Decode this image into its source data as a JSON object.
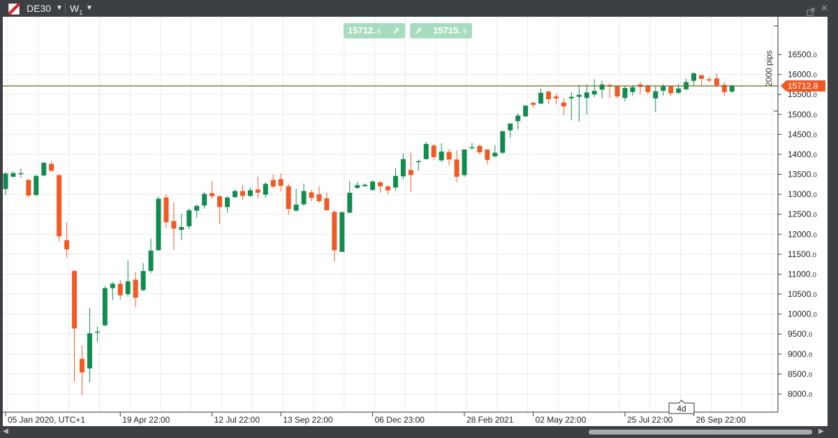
{
  "window": {
    "symbol": "DE30",
    "timeframe": "W",
    "timeframe_sub": "1"
  },
  "trade": {
    "sell_price": "15712.",
    "sell_price_small": "8",
    "buy_price": "15715.",
    "buy_price_small": "9"
  },
  "price_axis": {
    "current_price": "15712.8",
    "ruler_label": "2000 pips"
  },
  "time_axis": {
    "interval_badge": "4d"
  },
  "colors": {
    "bull": "#118c4f",
    "bear": "#f15a24",
    "price_line": "#6b6b1a",
    "grid": "#e9e9e9",
    "trade_button": "#a8dcbf"
  },
  "chart_data": {
    "type": "candlestick",
    "symbol": "DE30",
    "timeframe": "W1",
    "ylim": [
      7700,
      16900
    ],
    "y_ticks": [
      "8000.0",
      "8500.0",
      "9000.0",
      "9500.0",
      "10000.0",
      "10500.0",
      "11000.0",
      "11500.0",
      "12000.0",
      "12500.0",
      "13000.0",
      "13500.0",
      "14000.0",
      "14500.0",
      "15000.0",
      "15500.0",
      "16000.0",
      "16500.0"
    ],
    "x_labels": [
      "05 Jan 2020, UTC+1",
      "19 Apr 22:00",
      "12 Jul 22:00",
      "13 Sep 22:00",
      "06 Dec 23:00",
      "28 Feb 2021",
      "02 May 22:00",
      "25 Jul 22:00",
      "26 Sep 22:00"
    ],
    "x_label_weeks": [
      0,
      15,
      27,
      36,
      48,
      60,
      69,
      81,
      90
    ],
    "last_price": 15712.8,
    "candles": [
      [
        13130,
        13520,
        13560,
        12980
      ],
      [
        13440,
        13530,
        13580,
        13420
      ],
      [
        13520,
        13530,
        13640,
        13420
      ],
      [
        13360,
        12970,
        13380,
        12920
      ],
      [
        12980,
        13460,
        13490,
        12960
      ],
      [
        13470,
        13790,
        13800,
        13450
      ],
      [
        13760,
        13590,
        13840,
        13560
      ],
      [
        13480,
        11950,
        13490,
        11820
      ],
      [
        11850,
        11620,
        12300,
        11420
      ],
      [
        11080,
        9640,
        11100,
        8300
      ],
      [
        8880,
        8540,
        9220,
        7970
      ],
      [
        8640,
        9520,
        10150,
        8290
      ],
      [
        9540,
        9560,
        9690,
        9310
      ],
      [
        9720,
        10650,
        10700,
        9690
      ],
      [
        10650,
        10760,
        10800,
        10350
      ],
      [
        10760,
        10470,
        10850,
        10350
      ],
      [
        10500,
        10820,
        11340,
        10440
      ],
      [
        10860,
        10410,
        11060,
        10170
      ],
      [
        10600,
        11080,
        11280,
        10570
      ],
      [
        11080,
        11590,
        11890,
        11030
      ],
      [
        11600,
        12890,
        12940,
        11590
      ],
      [
        12920,
        12300,
        13000,
        12160
      ],
      [
        12330,
        12140,
        12800,
        11610
      ],
      [
        12110,
        12180,
        12510,
        11850
      ],
      [
        12200,
        12600,
        12650,
        12130
      ],
      [
        12590,
        12710,
        12740,
        12410
      ],
      [
        12720,
        13010,
        13060,
        12640
      ],
      [
        13030,
        12950,
        13340,
        12880
      ],
      [
        12950,
        12680,
        12980,
        12250
      ],
      [
        12680,
        12920,
        12950,
        12540
      ],
      [
        12930,
        13080,
        13120,
        12900
      ],
      [
        13080,
        12960,
        13240,
        12860
      ],
      [
        12960,
        13100,
        13170,
        12920
      ],
      [
        13120,
        13040,
        13450,
        12890
      ],
      [
        12990,
        13260,
        13300,
        12910
      ],
      [
        13360,
        13190,
        13500,
        13160
      ],
      [
        13380,
        13210,
        13520,
        13070
      ],
      [
        13200,
        12630,
        13270,
        12490
      ],
      [
        12590,
        12740,
        13140,
        12570
      ],
      [
        12750,
        13080,
        13270,
        12700
      ],
      [
        13050,
        12910,
        13110,
        12830
      ],
      [
        13000,
        12830,
        13200,
        12780
      ],
      [
        12900,
        12600,
        13050,
        12710
      ],
      [
        12560,
        11600,
        12600,
        11310
      ],
      [
        11560,
        12550,
        12580,
        11550
      ],
      [
        12540,
        13040,
        13340,
        12530
      ],
      [
        13160,
        13230,
        13310,
        13130
      ],
      [
        13200,
        13240,
        13270,
        13210
      ],
      [
        13110,
        13320,
        13350,
        13090
      ],
      [
        13300,
        13200,
        13330,
        13040
      ],
      [
        13200,
        13100,
        13200,
        13000
      ],
      [
        13170,
        13460,
        13660,
        13090
      ],
      [
        13450,
        13880,
        14020,
        13370
      ],
      [
        13610,
        13480,
        14040,
        13060
      ],
      [
        13810,
        13830,
        13870,
        13580
      ],
      [
        13880,
        14260,
        14310,
        13870
      ],
      [
        14220,
        13930,
        14270,
        13860
      ],
      [
        13850,
        14070,
        14280,
        13810
      ],
      [
        14060,
        13870,
        14130,
        13720
      ],
      [
        13870,
        13440,
        14100,
        13300
      ],
      [
        13480,
        14120,
        14130,
        13440
      ],
      [
        14170,
        14180,
        14290,
        14110
      ],
      [
        14210,
        14050,
        14250,
        13990
      ],
      [
        14120,
        13860,
        14130,
        13740
      ],
      [
        13950,
        14040,
        14230,
        13920
      ],
      [
        14040,
        14580,
        14590,
        14010
      ],
      [
        14600,
        14770,
        14780,
        14420
      ],
      [
        14830,
        14970,
        15030,
        14620
      ],
      [
        14950,
        15220,
        15230,
        14940
      ],
      [
        15290,
        15240,
        15310,
        15160
      ],
      [
        15270,
        15540,
        15650,
        15260
      ],
      [
        15570,
        15380,
        15590,
        15250
      ],
      [
        15450,
        15400,
        15520,
        15250
      ],
      [
        15300,
        15200,
        15410,
        14980
      ],
      [
        15400,
        15440,
        15560,
        14850
      ],
      [
        15440,
        15490,
        15740,
        14820
      ],
      [
        15410,
        15550,
        15760,
        15000
      ],
      [
        15500,
        15590,
        15880,
        15430
      ],
      [
        15620,
        15750,
        15840,
        15400
      ],
      [
        15740,
        15700,
        15760,
        15410
      ],
      [
        15710,
        15450,
        15720,
        15400
      ],
      [
        15410,
        15660,
        15730,
        15320
      ],
      [
        15560,
        15680,
        15740,
        15460
      ],
      [
        15750,
        15690,
        15810,
        15510
      ],
      [
        15720,
        15560,
        15760,
        15500
      ],
      [
        15400,
        15580,
        15720,
        15060
      ],
      [
        15590,
        15700,
        15760,
        15470
      ],
      [
        15700,
        15530,
        15710,
        15460
      ],
      [
        15540,
        15650,
        15770,
        15510
      ],
      [
        15630,
        15810,
        15900,
        15600
      ],
      [
        15840,
        16030,
        16050,
        15710
      ],
      [
        15980,
        15890,
        16010,
        15710
      ],
      [
        15880,
        15850,
        15940,
        15800
      ],
      [
        15900,
        15730,
        16030,
        15680
      ],
      [
        15740,
        15560,
        15810,
        15460
      ],
      [
        15570,
        15710,
        15750,
        15540
      ]
    ]
  }
}
